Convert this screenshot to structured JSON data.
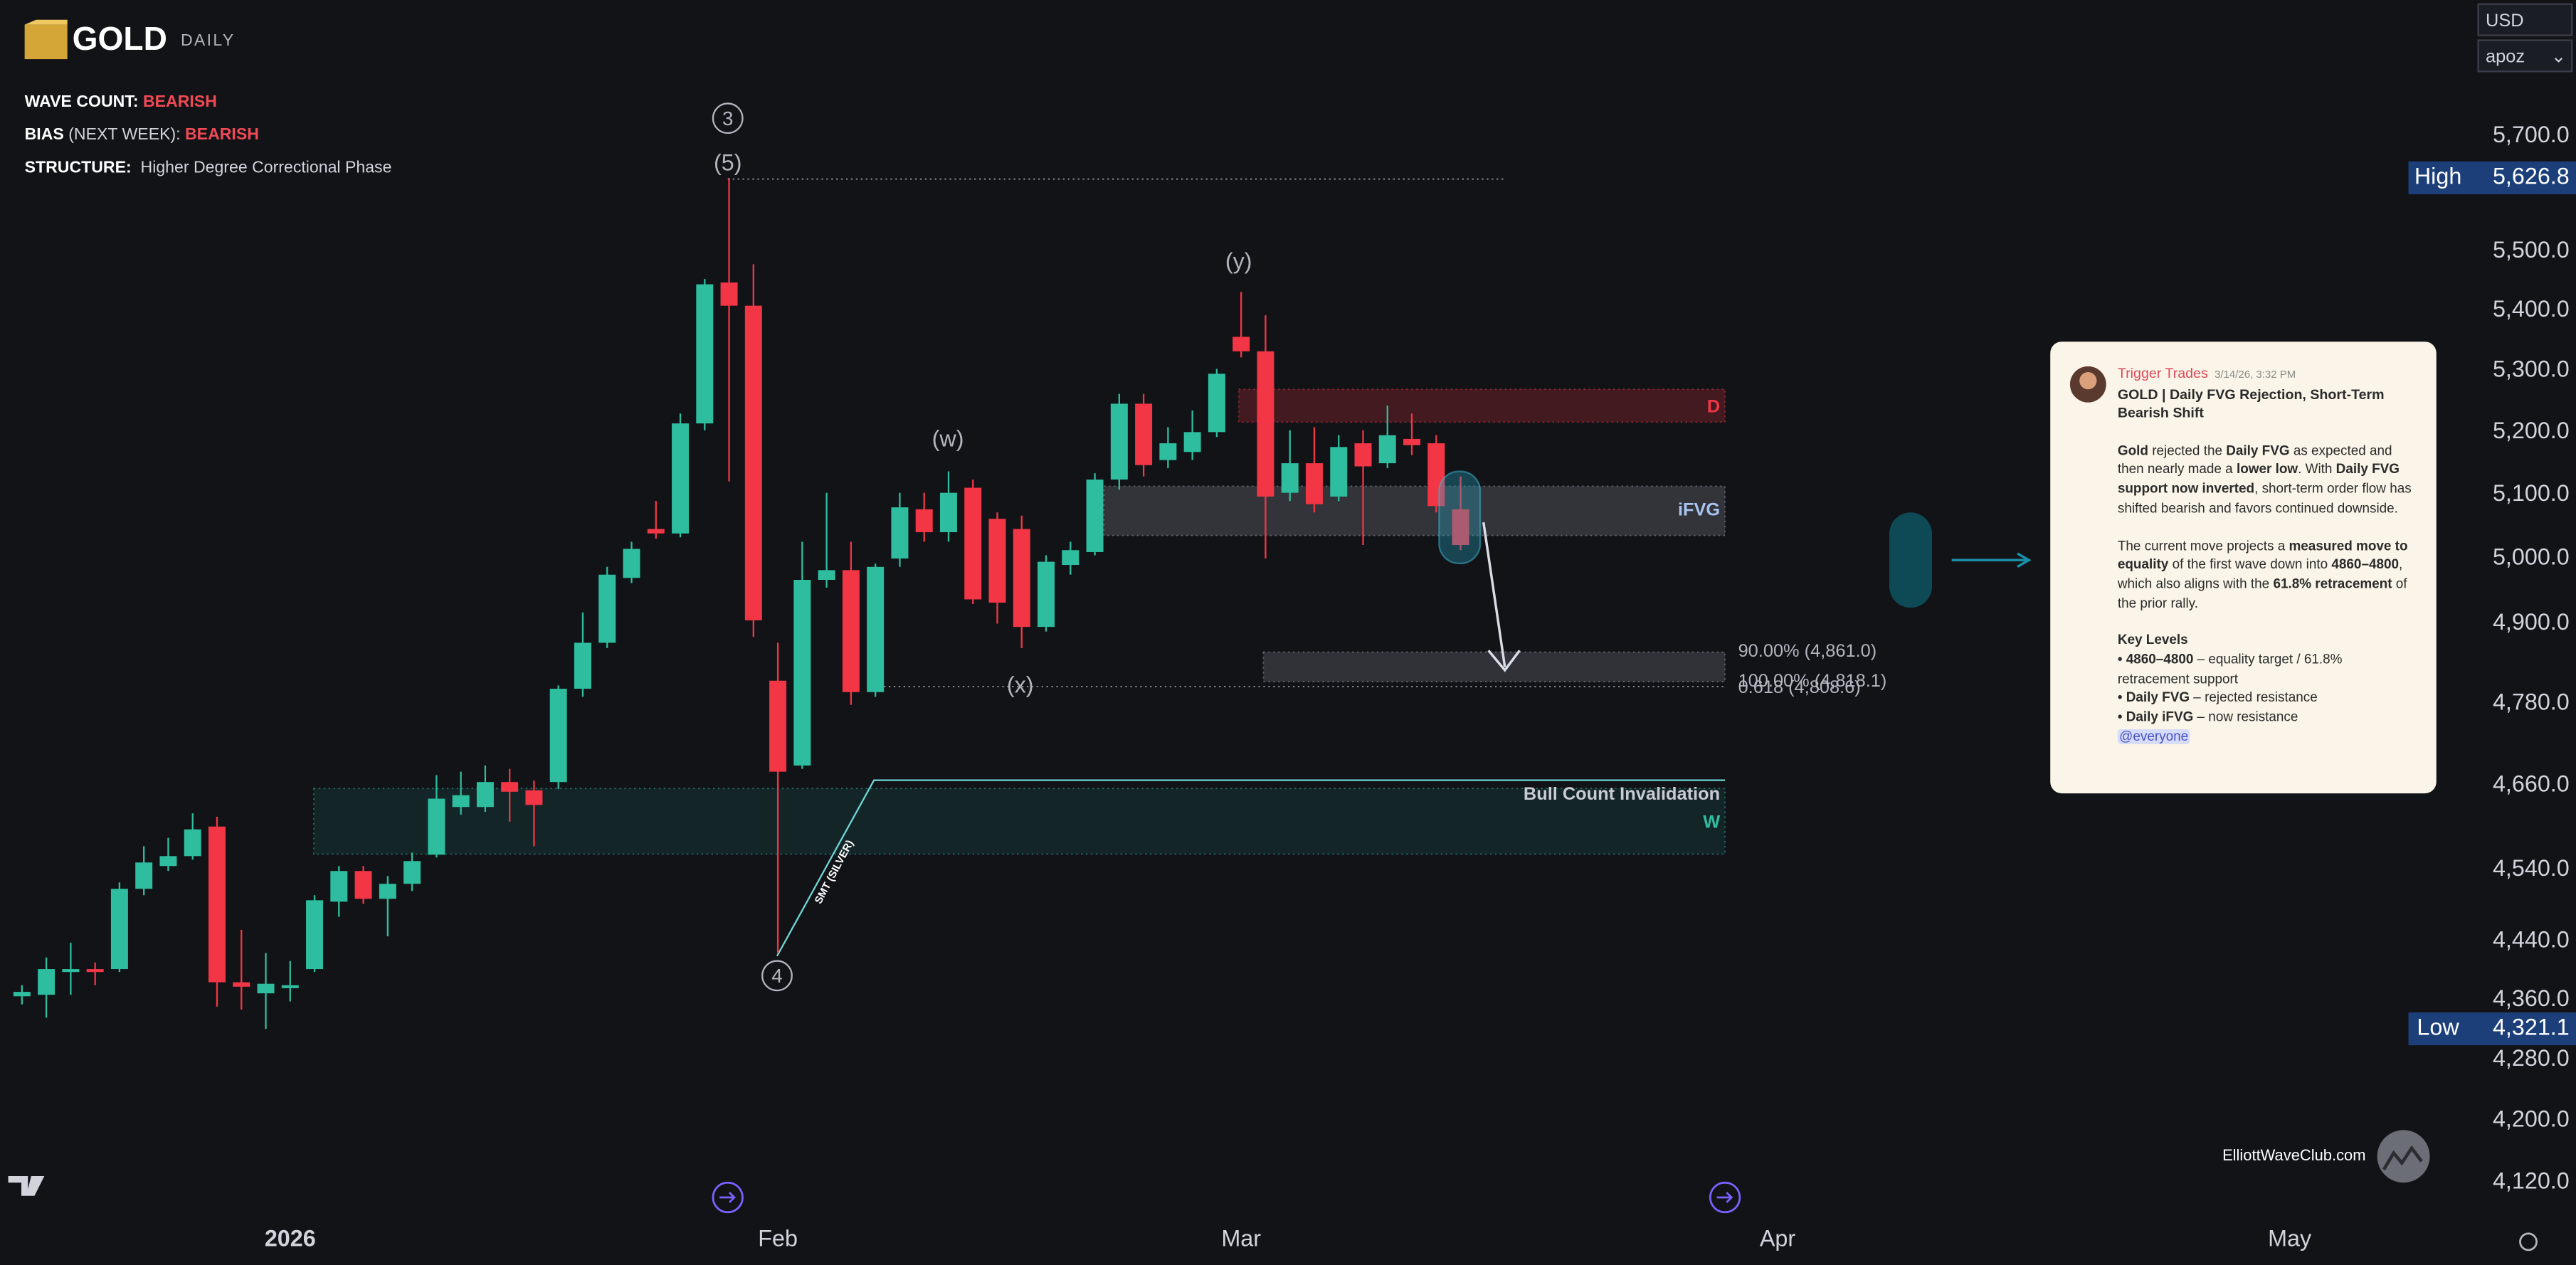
{
  "header": {
    "logo": "GOLD",
    "timeframe": "DAILY",
    "info": [
      {
        "label": "WAVE COUNT:",
        "value": "BEARISH"
      },
      {
        "label": "BIAS",
        "qualifier": "(NEXT WEEK):",
        "value": "BEARISH"
      },
      {
        "label": "STRUCTURE:",
        "value": "Higher Degree Correctional Phase"
      }
    ]
  },
  "controls": {
    "currency": "USD",
    "account": "apoz"
  },
  "chart_data": {
    "type": "candlestick",
    "log_scale": true,
    "up_color": "#2ebd9e",
    "down_color": "#f23645",
    "xlim": [
      -0.9,
      100.7
    ],
    "xticks": [
      {
        "value": 11,
        "label": "2026"
      },
      {
        "value": 31,
        "label": "Feb"
      },
      {
        "value": 50,
        "label": "Mar"
      },
      {
        "value": 72,
        "label": "Apr"
      },
      {
        "value": 93,
        "label": "May"
      }
    ],
    "ylim": [
      4078,
      5946
    ],
    "yticks": [
      {
        "value": 5700,
        "label": "5,700.0"
      },
      {
        "value": 5500,
        "label": "5,500.0"
      },
      {
        "value": 5400,
        "label": "5,400.0"
      },
      {
        "value": 5300,
        "label": "5,300.0"
      },
      {
        "value": 5200,
        "label": "5,200.0"
      },
      {
        "value": 5100,
        "label": "5,100.0"
      },
      {
        "value": 5000,
        "label": "5,000.0"
      },
      {
        "value": 4900,
        "label": "4,900.0"
      },
      {
        "value": 4780,
        "label": "4,780.0"
      },
      {
        "value": 4660,
        "label": "4,660.0"
      },
      {
        "value": 4540,
        "label": "4,540.0"
      },
      {
        "value": 4440,
        "label": "4,440.0"
      },
      {
        "value": 4360,
        "label": "4,360.0"
      },
      {
        "value": 4280,
        "label": "4,280.0"
      },
      {
        "value": 4200,
        "label": "4,200.0"
      },
      {
        "value": 4120,
        "label": "4,120.0"
      }
    ],
    "open": [
      4365,
      4367,
      4398,
      4402,
      4402,
      4513,
      4545,
      4559,
      4601,
      4384,
      4369,
      4376,
      4402,
      4495,
      4538,
      4499,
      4520,
      4561,
      4629,
      4629,
      4665,
      4653,
      4665,
      4802,
      4871,
      4970,
      5046,
      5039,
      5214,
      5447,
      5408,
      4814,
      4689,
      4967,
      4982,
      4797,
      5000,
      5077,
      5041,
      5111,
      5062,
      5046,
      4895,
      4990,
      5010,
      5124,
      5246,
      5155,
      5168,
      5200,
      5356,
      5332,
      5103,
      5150,
      5097,
      5182,
      5150,
      5189,
      5182,
      5077
    ],
    "high": [
      4380,
      4418,
      4438,
      4411,
      4522,
      4573,
      4585,
      4620,
      4615,
      4456,
      4424,
      4413,
      4504,
      4545,
      4545,
      4531,
      4564,
      4675,
      4680,
      4689,
      4684,
      4667,
      4807,
      4917,
      4987,
      5026,
      5090,
      5230,
      5453,
      5626.8,
      5478,
      4871,
      5026,
      5103,
      5026,
      4992,
      5103,
      5103,
      5137,
      5124,
      5072,
      5067,
      5005,
      5026,
      5134,
      5262,
      5262,
      5208,
      5235,
      5303,
      5431,
      5392,
      5203,
      5208,
      5195,
      5203,
      5243,
      5230,
      5195,
      5129
    ],
    "low": [
      4354,
      4336,
      4367,
      4380,
      4398,
      4504,
      4538,
      4554,
      4351,
      4347,
      4321.1,
      4358,
      4398,
      4474,
      4492,
      4447,
      4510,
      4557,
      4618,
      4622,
      4608,
      4573,
      4655,
      4790,
      4863,
      4962,
      5031,
      5033,
      5203,
      5121,
      4880,
      4424,
      4684,
      4955,
      4778,
      4790,
      4987,
      5026,
      5026,
      4930,
      4900,
      4863,
      4888,
      4975,
      5005,
      5108,
      5129,
      5142,
      5155,
      5192,
      5322,
      5000,
      5090,
      5072,
      5090,
      5021,
      5142,
      5163,
      5072,
      5013
    ],
    "close": [
      4371,
      4402,
      4402,
      4398,
      4513,
      4550,
      4559,
      4597,
      4384,
      4378,
      4382,
      4380,
      4497,
      4538,
      4499,
      4520,
      4552,
      4641,
      4646,
      4665,
      4651,
      4632,
      4802,
      4871,
      4975,
      5015,
      5039,
      5214,
      5444,
      5408,
      4905,
      4680,
      4967,
      4982,
      4797,
      4987,
      5080,
      5041,
      5103,
      4937,
      4932,
      4895,
      4995,
      5013,
      5124,
      5246,
      5147,
      5182,
      5200,
      5295,
      5332,
      5097,
      5150,
      5085,
      5176,
      5145,
      5195,
      5179,
      5082,
      5021
    ],
    "price_labels": [
      {
        "name": "High",
        "value": 5626.8,
        "value_label": "5,626.8"
      },
      {
        "name": "Low",
        "value": 4321.1,
        "value_label": "4,321.1"
      }
    ],
    "wave_labels": [
      "3",
      "(5)",
      "(w)",
      "(x)",
      "(y)",
      "4"
    ],
    "zones": [
      "D",
      "iFVG",
      "Bull Count Invalidation",
      "W"
    ],
    "fib_labels": [
      "90.00% (4,861.0)",
      "100.00% (4,818.1)",
      "0.618 (4,808.6)"
    ],
    "annotation": "SMT (SILVER)"
  },
  "watermark": "ElliottWaveClub.com",
  "message": {
    "author": "Trigger Trades",
    "time": "3/14/26, 3:32 PM",
    "title": "GOLD | Daily FVG Rejection, Short-Term Bearish Shift",
    "paragraphs": [
      [
        {
          "text": "Gold",
          "bold": true
        },
        {
          "text": " rejected the ",
          "bold": false
        },
        {
          "text": "Daily FVG",
          "bold": true
        },
        {
          "text": " as expected and then nearly made a ",
          "bold": false
        },
        {
          "text": "lower low",
          "bold": true
        },
        {
          "text": ". With ",
          "bold": false
        },
        {
          "text": "Daily FVG support now inverted",
          "bold": true
        },
        {
          "text": ", short-term order flow has shifted bearish and favors continued downside.",
          "bold": false
        }
      ],
      [
        {
          "text": "The current move projects a ",
          "bold": false
        },
        {
          "text": "measured move to equality",
          "bold": true
        },
        {
          "text": " of the first wave down into ",
          "bold": false
        },
        {
          "text": "4860–4800",
          "bold": true
        },
        {
          "text": ", which also aligns with the ",
          "bold": false
        },
        {
          "text": "61.8% retracement",
          "bold": true
        },
        {
          "text": " of the prior rally.",
          "bold": false
        }
      ]
    ],
    "key_levels_title": "Key Levels",
    "key_levels": [
      [
        {
          "text": "• 4860–4800",
          "bold": true
        },
        {
          "text": " – equality target / 61.8% retracement support",
          "bold": false
        }
      ],
      [
        {
          "text": "• Daily FVG",
          "bold": true
        },
        {
          "text": " – rejected resistance",
          "bold": false
        }
      ],
      [
        {
          "text": "• Daily iFVG",
          "bold": true
        },
        {
          "text": " – now resistance",
          "bold": false
        }
      ]
    ],
    "mention": "@everyone"
  }
}
